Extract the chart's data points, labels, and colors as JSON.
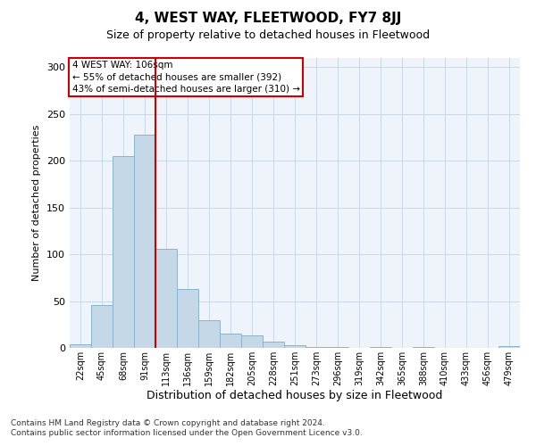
{
  "title": "4, WEST WAY, FLEETWOOD, FY7 8JJ",
  "subtitle": "Size of property relative to detached houses in Fleetwood",
  "xlabel": "Distribution of detached houses by size in Fleetwood",
  "ylabel": "Number of detached properties",
  "footer_line1": "Contains HM Land Registry data © Crown copyright and database right 2024.",
  "footer_line2": "Contains public sector information licensed under the Open Government Licence v3.0.",
  "bar_labels": [
    "22sqm",
    "45sqm",
    "68sqm",
    "91sqm",
    "113sqm",
    "136sqm",
    "159sqm",
    "182sqm",
    "205sqm",
    "228sqm",
    "251sqm",
    "273sqm",
    "296sqm",
    "319sqm",
    "342sqm",
    "365sqm",
    "388sqm",
    "410sqm",
    "433sqm",
    "456sqm",
    "479sqm"
  ],
  "bar_values": [
    4,
    46,
    205,
    228,
    106,
    63,
    30,
    15,
    13,
    7,
    3,
    1,
    1,
    0,
    1,
    0,
    1,
    0,
    0,
    0,
    2
  ],
  "bar_color": "#c5d8e8",
  "bar_edge_color": "#8ab4cc",
  "grid_color": "#c8d8e8",
  "background_color": "#eef4fa",
  "property_line_x": 3.5,
  "property_line_color": "#cc0000",
  "annotation_text": "4 WEST WAY: 106sqm\n← 55% of detached houses are smaller (392)\n43% of semi-detached houses are larger (310) →",
  "annotation_box_color": "#ffffff",
  "annotation_box_edge_color": "#cc0000",
  "ylim": [
    0,
    310
  ],
  "yticks": [
    0,
    50,
    100,
    150,
    200,
    250,
    300
  ],
  "title_fontsize": 11,
  "subtitle_fontsize": 9,
  "ylabel_fontsize": 8,
  "xlabel_fontsize": 9,
  "tick_fontsize": 8,
  "xtick_fontsize": 7,
  "annotation_fontsize": 7.5,
  "footer_fontsize": 6.5
}
